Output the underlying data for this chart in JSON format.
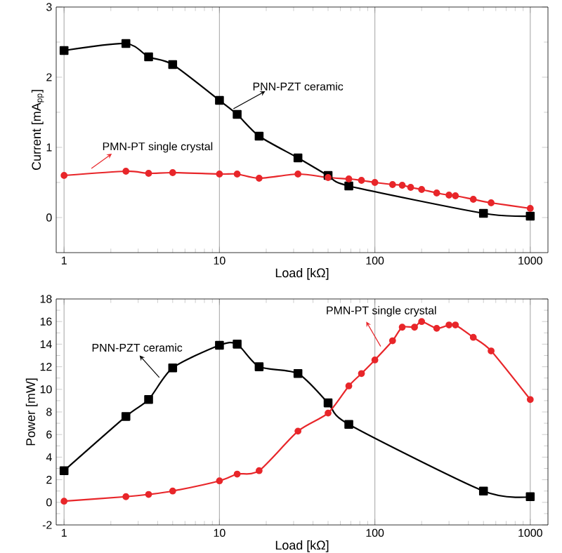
{
  "chart_data": [
    {
      "type": "line",
      "xlabel": "Load [kΩ]",
      "ylabel": "Current [mA$_{pp}$]",
      "log": "x",
      "grid": "x",
      "legend": false,
      "xlim": [
        0.89,
        1300
      ],
      "xticks": [
        1,
        10,
        100,
        1000
      ],
      "ylim": [
        -0.5,
        3
      ],
      "yticks": [
        0,
        1,
        2,
        3
      ],
      "series": [
        {
          "name": "PNN-PZT ceramic",
          "color": "#000000",
          "marker": "square",
          "x": [
            1,
            2.5,
            3.5,
            5,
            10,
            13,
            18,
            32,
            50,
            68,
            500,
            1000
          ],
          "values": [
            2.38,
            2.48,
            2.29,
            2.18,
            1.67,
            1.47,
            1.16,
            0.85,
            0.6,
            0.45,
            0.06,
            0.02
          ]
        },
        {
          "name": "PMN-PT single crystal",
          "color": "#e8262a",
          "marker": "circle",
          "x": [
            1,
            2.5,
            3.5,
            5,
            10,
            13,
            18,
            32,
            50,
            68,
            82,
            100,
            130,
            150,
            170,
            200,
            250,
            300,
            330,
            430,
            560,
            1000
          ],
          "values": [
            0.6,
            0.66,
            0.63,
            0.64,
            0.62,
            0.62,
            0.56,
            0.62,
            0.57,
            0.55,
            0.53,
            0.5,
            0.47,
            0.46,
            0.43,
            0.4,
            0.35,
            0.32,
            0.31,
            0.26,
            0.21,
            0.13
          ]
        }
      ]
    },
    {
      "type": "line",
      "xlabel": "Load [kΩ]",
      "ylabel": "Power [mW]",
      "log": "x",
      "grid": "x",
      "legend": false,
      "xlim": [
        0.89,
        1300
      ],
      "xticks": [
        1,
        10,
        100,
        1000
      ],
      "ylim": [
        -2,
        18
      ],
      "yticks": [
        -2,
        0,
        2,
        4,
        6,
        8,
        10,
        12,
        14,
        16,
        18
      ],
      "series": [
        {
          "name": "PNN-PZT ceramic",
          "color": "#000000",
          "marker": "square",
          "x": [
            1,
            2.5,
            3.5,
            5,
            10,
            13,
            18,
            32,
            50,
            68,
            500,
            1000
          ],
          "values": [
            2.8,
            7.6,
            9.1,
            11.9,
            13.9,
            14.0,
            12.0,
            11.4,
            8.8,
            6.9,
            1.0,
            0.5
          ]
        },
        {
          "name": "PMN-PT single crystal",
          "color": "#e8262a",
          "marker": "circle",
          "x": [
            1,
            2.5,
            3.5,
            5,
            10,
            13,
            18,
            32,
            50,
            68,
            82,
            100,
            130,
            150,
            180,
            200,
            250,
            300,
            330,
            430,
            560,
            1000
          ],
          "values": [
            0.1,
            0.5,
            0.7,
            1.0,
            1.9,
            2.5,
            2.8,
            6.3,
            7.9,
            10.3,
            11.4,
            12.6,
            14.3,
            15.5,
            15.5,
            16.0,
            15.4,
            15.7,
            15.7,
            14.6,
            13.4,
            9.1
          ]
        }
      ]
    }
  ]
}
